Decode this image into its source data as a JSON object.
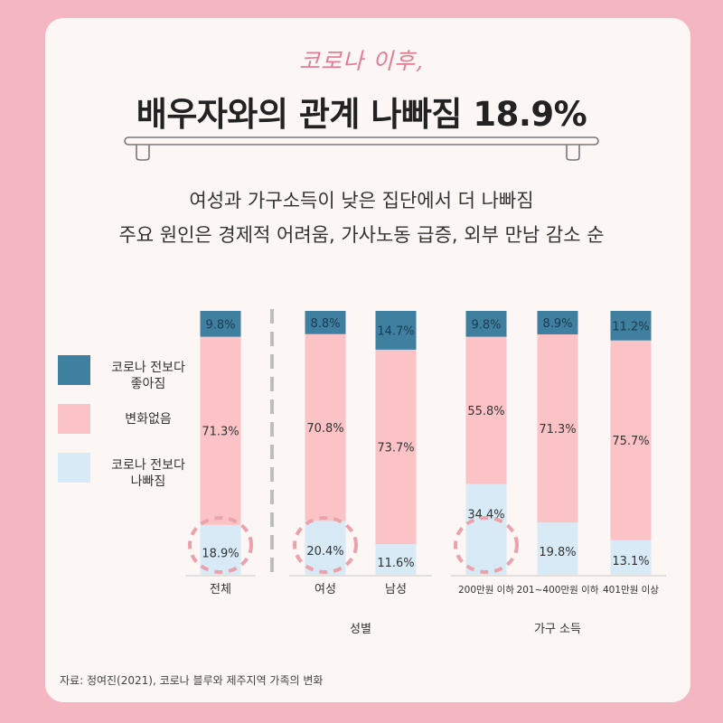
{
  "header": {
    "handwritten_subtitle": "코로나 이후,",
    "title": "배우자와의 관계 나빠짐 18.9%",
    "subtitle_line1": "여성과 가구소득이 낮은 집단에서 더 나빠짐",
    "subtitle_line2": "주요 원인은 경제적 어려움, 가사노동 급증, 외부 만남 감소 순"
  },
  "legend": [
    {
      "label": "코로나 전보다\n좋아짐",
      "color": "#3f7f9f"
    },
    {
      "label": "변화없음",
      "color": "#fbc3c6"
    },
    {
      "label": "코로나 전보다\n나빠짐",
      "color": "#d7eaf6"
    }
  ],
  "source": "자료: 정여진(2021), 코로나 블루와 제주지역 가족의 변화",
  "colors": {
    "better": "#3f7f9f",
    "same": "#fbc3c6",
    "worse": "#d7eaf6",
    "highlight": "#eca2ab",
    "divider": "#bdbdbd"
  },
  "chart_data": {
    "type": "bar",
    "stacked": true,
    "categories": [
      "전체",
      "여성",
      "남성",
      "200만원 이하",
      "201~400만원 이하",
      "401만원 이상"
    ],
    "groups": [
      {
        "label": "",
        "categories": [
          "전체"
        ]
      },
      {
        "label": "성별",
        "categories": [
          "여성",
          "남성"
        ]
      },
      {
        "label": "가구 소득",
        "categories": [
          "200만원 이하",
          "201~400만원 이하",
          "401만원 이상"
        ]
      }
    ],
    "series": [
      {
        "name": "코로나 전보다 나빠짐",
        "values": [
          18.9,
          20.4,
          11.6,
          34.4,
          19.8,
          13.1
        ],
        "labels": [
          "18.9%",
          "20.4%",
          "11.6%",
          "34.4%",
          "19.8%",
          "13.1%"
        ]
      },
      {
        "name": "변화없음",
        "values": [
          71.3,
          70.8,
          73.7,
          55.8,
          71.3,
          75.7
        ],
        "labels": [
          "71.3%",
          "70.8%",
          "73.7%",
          "55.8%",
          "71.3%",
          "75.7%"
        ]
      },
      {
        "name": "코로나 전보다 좋아짐",
        "values": [
          9.8,
          8.8,
          14.7,
          9.8,
          8.9,
          11.2
        ],
        "labels": [
          "9.8%",
          "8.8%",
          "14.7%",
          "9.8%",
          "8.9%",
          "11.2%"
        ]
      }
    ],
    "highlighted": [
      "전체",
      "여성",
      "200만원 이하"
    ],
    "ylim": [
      0,
      100
    ]
  }
}
